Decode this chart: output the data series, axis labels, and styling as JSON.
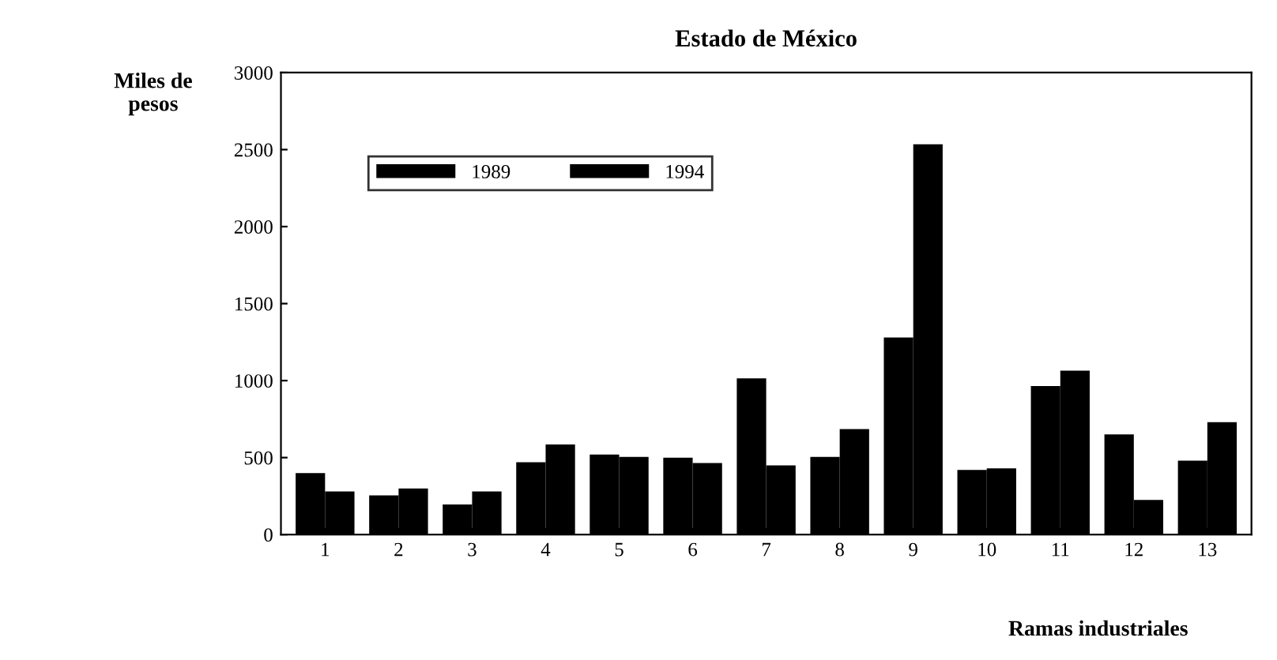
{
  "chart_data": {
    "type": "bar",
    "title": "Estado de México",
    "ylabel": "Miles de\npesos",
    "xlabel": "Ramas industriales",
    "categories": [
      "1",
      "2",
      "3",
      "4",
      "5",
      "6",
      "7",
      "8",
      "9",
      "10",
      "11",
      "12",
      "13"
    ],
    "series": [
      {
        "name": "1989",
        "color": "#000000",
        "values": [
          400,
          255,
          195,
          470,
          520,
          500,
          1015,
          505,
          1280,
          420,
          965,
          650,
          480
        ]
      },
      {
        "name": "1994",
        "color": "#000000",
        "values": [
          280,
          300,
          280,
          585,
          505,
          465,
          450,
          685,
          2535,
          430,
          1065,
          225,
          730
        ]
      }
    ],
    "ylim": [
      0,
      3000
    ],
    "yticks": [
      0,
      500,
      1000,
      1500,
      2000,
      2500,
      3000
    ],
    "grid": false,
    "legend": "top left"
  }
}
